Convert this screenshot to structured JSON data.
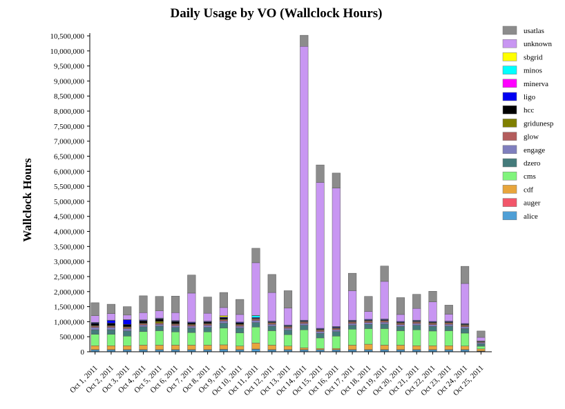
{
  "chart_data": {
    "type": "bar",
    "stacked": true,
    "title": "Daily Usage by VO (Wallclock Hours)",
    "ylabel": "Wallclock Hours",
    "xlabel": "",
    "ylim": [
      0,
      10500000
    ],
    "yticks": [
      "0",
      "500,000",
      "1,000,000",
      "1,500,000",
      "2,000,000",
      "2,500,000",
      "3,000,000",
      "3,500,000",
      "4,000,000",
      "4,500,000",
      "5,000,000",
      "5,500,000",
      "6,000,000",
      "6,500,000",
      "7,000,000",
      "7,500,000",
      "8,000,000",
      "8,500,000",
      "9,000,000",
      "9,500,000",
      "10,000,000",
      "10,500,000"
    ],
    "ytick_values": [
      0,
      500000,
      1000000,
      1500000,
      2000000,
      2500000,
      3000000,
      3500000,
      4000000,
      4500000,
      5000000,
      5500000,
      6000000,
      6500000,
      7000000,
      7500000,
      8000000,
      8500000,
      9000000,
      9500000,
      10000000,
      10500000
    ],
    "categories": [
      "Oct 1, 2011",
      "Oct 2, 2011",
      "Oct 3, 2011",
      "Oct 4, 2011",
      "Oct 5, 2011",
      "Oct 6, 2011",
      "Oct 7, 2011",
      "Oct 8, 2011",
      "Oct 9, 2011",
      "Oct 10, 2011",
      "Oct 11, 2011",
      "Oct 12, 2011",
      "Oct 13, 2011",
      "Oct 14, 2011",
      "Oct 15, 2011",
      "Oct 16, 2011",
      "Oct 17, 2011",
      "Oct 18, 2011",
      "Oct 19, 2011",
      "Oct 20, 2011",
      "Oct 21, 2011",
      "Oct 22, 2011",
      "Oct 23, 2011",
      "Oct 24, 2011",
      "Oct 25, 2011"
    ],
    "legend_position": "top-right",
    "series": [
      {
        "name": "alice",
        "color": "#4e9fd6",
        "values": [
          60000,
          60000,
          60000,
          60000,
          60000,
          60000,
          60000,
          60000,
          70000,
          60000,
          80000,
          60000,
          60000,
          60000,
          60000,
          60000,
          60000,
          60000,
          60000,
          60000,
          60000,
          60000,
          60000,
          60000,
          20000
        ]
      },
      {
        "name": "auger",
        "color": "#f2566a",
        "values": [
          10000,
          10000,
          10000,
          10000,
          10000,
          10000,
          10000,
          10000,
          10000,
          10000,
          10000,
          10000,
          10000,
          10000,
          10000,
          10000,
          10000,
          10000,
          10000,
          10000,
          10000,
          10000,
          10000,
          10000,
          5000
        ]
      },
      {
        "name": "cdf",
        "color": "#e8a53c",
        "values": [
          130000,
          130000,
          130000,
          150000,
          150000,
          150000,
          150000,
          150000,
          150000,
          120000,
          200000,
          150000,
          120000,
          60000,
          40000,
          40000,
          150000,
          180000,
          150000,
          150000,
          130000,
          130000,
          130000,
          120000,
          70000
        ]
      },
      {
        "name": "cms",
        "color": "#80f47c",
        "values": [
          380000,
          380000,
          320000,
          450000,
          480000,
          440000,
          420000,
          440000,
          560000,
          440000,
          530000,
          480000,
          380000,
          600000,
          350000,
          410000,
          530000,
          520000,
          550000,
          480000,
          530000,
          490000,
          500000,
          430000,
          90000
        ]
      },
      {
        "name": "dzero",
        "color": "#447b7b",
        "values": [
          150000,
          150000,
          170000,
          160000,
          150000,
          150000,
          150000,
          150000,
          160000,
          160000,
          150000,
          150000,
          150000,
          150000,
          150000,
          150000,
          130000,
          140000,
          150000,
          140000,
          150000,
          150000,
          150000,
          150000,
          80000
        ]
      },
      {
        "name": "engage",
        "color": "#7f7fbe",
        "values": [
          80000,
          80000,
          80000,
          60000,
          60000,
          60000,
          60000,
          70000,
          70000,
          60000,
          70000,
          60000,
          60000,
          60000,
          60000,
          60000,
          60000,
          60000,
          60000,
          60000,
          60000,
          60000,
          60000,
          60000,
          40000
        ]
      },
      {
        "name": "glow",
        "color": "#b35c5c",
        "values": [
          40000,
          40000,
          40000,
          40000,
          40000,
          40000,
          40000,
          40000,
          40000,
          40000,
          40000,
          40000,
          40000,
          40000,
          40000,
          40000,
          40000,
          40000,
          40000,
          40000,
          40000,
          40000,
          40000,
          40000,
          20000
        ]
      },
      {
        "name": "gridunesp",
        "color": "#7f7f00",
        "values": [
          20000,
          20000,
          20000,
          20000,
          60000,
          20000,
          20000,
          20000,
          20000,
          20000,
          20000,
          20000,
          20000,
          20000,
          20000,
          20000,
          20000,
          20000,
          20000,
          20000,
          20000,
          20000,
          20000,
          20000,
          10000
        ]
      },
      {
        "name": "hcc",
        "color": "#000000",
        "values": [
          80000,
          80000,
          80000,
          80000,
          80000,
          80000,
          50000,
          50000,
          50000,
          50000,
          20000,
          20000,
          20000,
          20000,
          20000,
          20000,
          20000,
          20000,
          20000,
          20000,
          20000,
          20000,
          20000,
          20000,
          10000
        ]
      },
      {
        "name": "ligo",
        "color": "#0000f2",
        "values": [
          20000,
          90000,
          150000,
          20000,
          20000,
          20000,
          20000,
          20000,
          20000,
          20000,
          20000,
          20000,
          20000,
          20000,
          20000,
          20000,
          20000,
          20000,
          20000,
          20000,
          20000,
          20000,
          20000,
          20000,
          10000
        ]
      },
      {
        "name": "minerva",
        "color": "#ff00ff",
        "values": [
          0,
          0,
          0,
          0,
          0,
          0,
          0,
          0,
          0,
          0,
          0,
          0,
          0,
          0,
          0,
          0,
          0,
          0,
          0,
          0,
          0,
          0,
          0,
          0,
          0
        ]
      },
      {
        "name": "minos",
        "color": "#00ffff",
        "values": [
          10000,
          10000,
          10000,
          10000,
          10000,
          10000,
          10000,
          10000,
          10000,
          10000,
          60000,
          10000,
          10000,
          10000,
          10000,
          10000,
          10000,
          10000,
          10000,
          10000,
          10000,
          10000,
          10000,
          10000,
          5000
        ]
      },
      {
        "name": "sbgrid",
        "color": "#ffff00",
        "values": [
          0,
          0,
          0,
          0,
          0,
          0,
          0,
          0,
          40000,
          0,
          10000,
          0,
          0,
          0,
          0,
          0,
          0,
          0,
          0,
          0,
          0,
          0,
          0,
          0,
          0
        ]
      },
      {
        "name": "unknown",
        "color": "#c896f2",
        "values": [
          220000,
          220000,
          150000,
          240000,
          240000,
          260000,
          960000,
          260000,
          270000,
          250000,
          1750000,
          950000,
          560000,
          9100000,
          4850000,
          4600000,
          980000,
          260000,
          1250000,
          230000,
          390000,
          650000,
          230000,
          1330000,
          120000
        ]
      },
      {
        "name": "usatlas",
        "color": "#8c8c8c",
        "values": [
          430000,
          310000,
          280000,
          560000,
          480000,
          550000,
          600000,
          540000,
          500000,
          500000,
          480000,
          600000,
          580000,
          370000,
          580000,
          500000,
          580000,
          500000,
          510000,
          560000,
          470000,
          350000,
          300000,
          570000,
          210000
        ]
      }
    ]
  }
}
